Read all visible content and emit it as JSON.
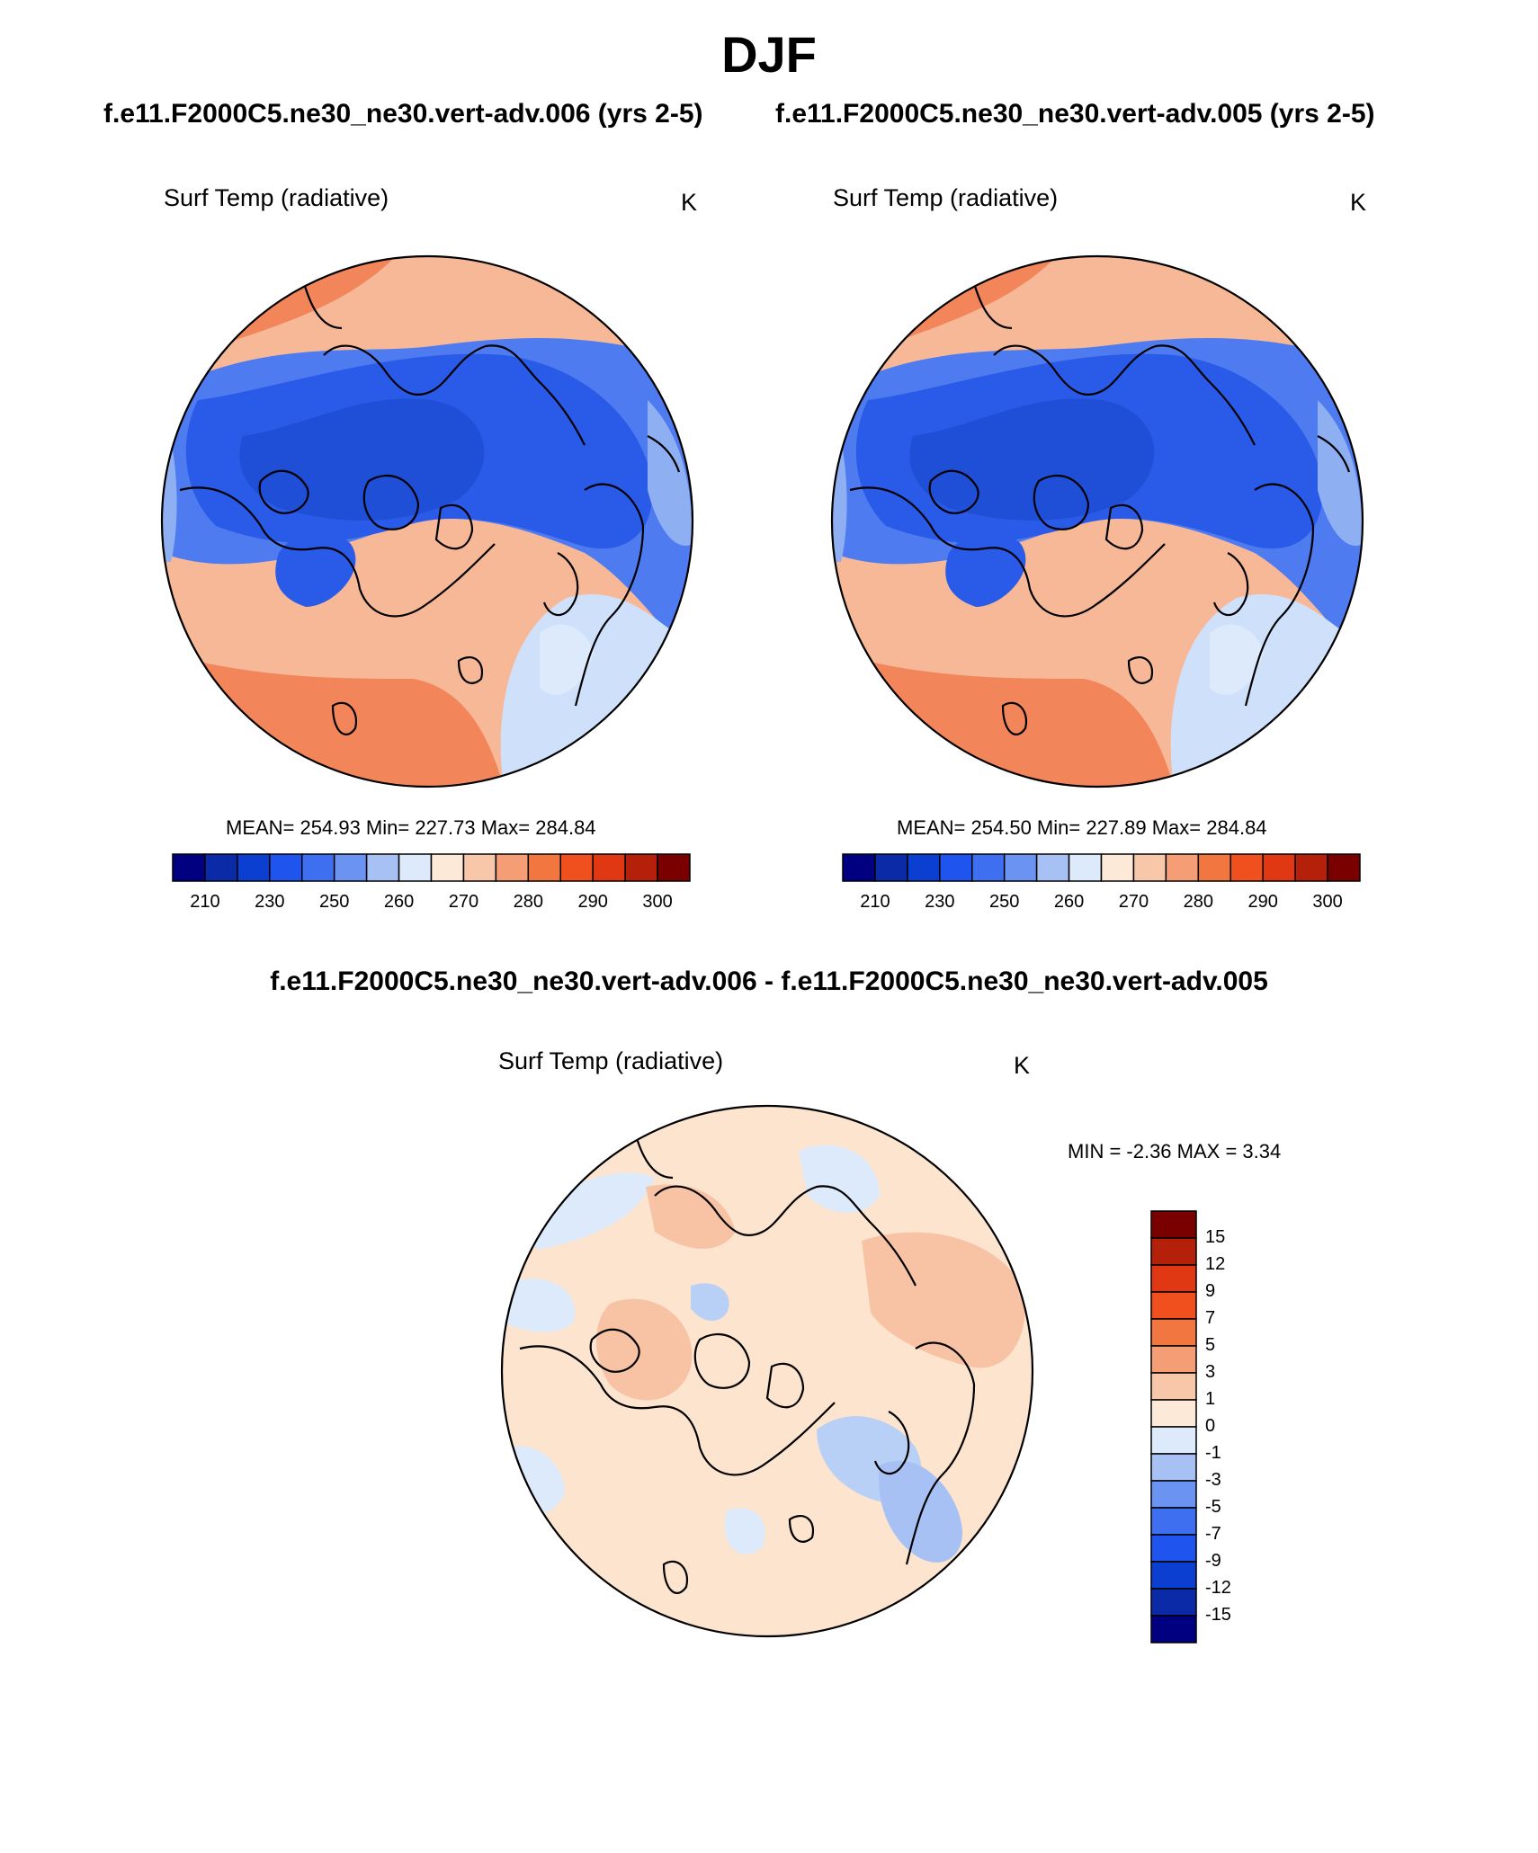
{
  "title": "DJF",
  "case_titles": {
    "left": "f.e11.F2000C5.ne30_ne30.vert-adv.006 (yrs 2-5)",
    "right": "f.e11.F2000C5.ne30_ne30.vert-adv.005 (yrs 2-5)"
  },
  "diff_title": "f.e11.F2000C5.ne30_ne30.vert-adv.006 - f.e11.F2000C5.ne30_ne30.vert-adv.005",
  "panels": {
    "top_left": {
      "variable": "Surf Temp (radiative)",
      "unit": "K",
      "stats": "MEAN= 254.93  Min= 227.73  Max= 284.84"
    },
    "top_right": {
      "variable": "Surf Temp (radiative)",
      "unit": "K",
      "stats": "MEAN= 254.50  Min= 227.89  Max= 284.84"
    },
    "bottom": {
      "variable": "Surf Temp (radiative)",
      "unit": "K",
      "stats": "MIN =  -2.36 MAX =   3.34"
    }
  },
  "abs_colorbar": {
    "colors": [
      "#000080",
      "#0a2aa8",
      "#0b3fd1",
      "#1f55ee",
      "#3d6ff0",
      "#6b93f2",
      "#a7c1f5",
      "#dceafb",
      "#fde9d8",
      "#f8c6a8",
      "#f59d75",
      "#f2763f",
      "#f0501d",
      "#e03812",
      "#b5200b",
      "#7a0000"
    ],
    "tick_labels": [
      "210",
      "230",
      "250",
      "260",
      "270",
      "280",
      "290",
      "300"
    ]
  },
  "diff_colorbar": {
    "colors": [
      "#7a0000",
      "#b5200b",
      "#e03812",
      "#f0501d",
      "#f2763f",
      "#f59d75",
      "#f8c6a8",
      "#fde9d8",
      "#dceafb",
      "#a7c1f5",
      "#6b93f2",
      "#3d6ff0",
      "#1f55ee",
      "#0b3fd1",
      "#0a2aa8",
      "#000080"
    ],
    "tick_labels": [
      "15",
      "12",
      "9",
      "7",
      "5",
      "3",
      "1",
      "0",
      "-1",
      "-3",
      "-5",
      "-7",
      "-9",
      "-12",
      "-15"
    ]
  },
  "colors": {
    "ice_blue": "#2a5ae8",
    "mid_blue": "#4f7bf0",
    "light_blue": "#8eb0f3",
    "warm": "#f2855a",
    "warm_light": "#f7b898",
    "diff_base": "#fde4cf",
    "diff_pos": "#f8c3a5",
    "diff_neg": "#b9d0f6",
    "coast": "#000000"
  }
}
